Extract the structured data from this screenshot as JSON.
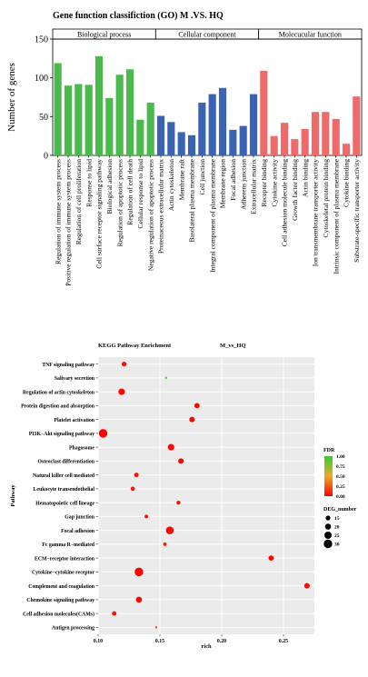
{
  "chart_data": [
    {
      "type": "bar",
      "title": "Gene function classifiction (GO) M .VS. HQ",
      "ylabel": "Number of genes",
      "ylim": [
        0,
        150
      ],
      "yticks": [
        0,
        50,
        100,
        150
      ],
      "groups": [
        {
          "name": "Biological process",
          "color": "#4cb94c",
          "categories": [
            "Regulation of immune system process",
            "Positive regulation of immune system process",
            "Regulation of cell proliferation",
            "Response to lipid",
            "Cell surface receptor signaling pathway",
            "Biological adhesion",
            "Regulation of apoptotic process",
            "Regulation of cell death",
            "Cellular response to lipid",
            "Negative regulation of apoptotic process"
          ],
          "values": [
            119,
            90,
            92,
            91,
            128,
            74,
            104,
            111,
            46,
            68
          ]
        },
        {
          "name": "Cellular component",
          "color": "#3b63b3",
          "categories": [
            "Proteinaceous extracellular matrix",
            "Actin cytoskeleton",
            "Membrane raft",
            "Basolateral plasma membrane",
            "Cell junction",
            "Integral component of plasma membrane",
            "Membrane region",
            "Focal adhesion",
            "Adherens junction",
            "Extracellular matrix"
          ],
          "values": [
            51,
            43,
            30,
            26,
            68,
            79,
            87,
            33,
            38,
            79
          ]
        },
        {
          "name": "Molecucular function",
          "color": "#ee6b6b",
          "categories": [
            "Receptor binding",
            "Cytokine activity",
            "Cell adhesion molecule binding",
            "Growth factor binding",
            "Actin binding",
            "Ion transmembrane transporter activity",
            "Cytoskeletal protein binding",
            "Intrinsic component of plasma membrane",
            "Cytokine binding",
            "Substrate-specific transporter activity"
          ],
          "values": [
            109,
            25,
            42,
            21,
            34,
            56,
            56,
            47,
            15,
            76
          ]
        }
      ]
    },
    {
      "type": "scatter",
      "title": "KEGG Pathway Enrichment",
      "subtitle": "M_vs_HQ",
      "xlabel": "rich",
      "ylabel": "Pathway",
      "xlim": [
        0.1,
        0.275
      ],
      "xticks": [
        0.1,
        0.15,
        0.2,
        0.25
      ],
      "xtick_labels": [
        "0.10",
        "0.15",
        "0.20",
        "0.25"
      ],
      "categories": [
        "TNF signaling pathway",
        "Salivary secretion",
        "Regulation of actin cytoskeleton",
        "Protein digestion and absorption",
        "Platelet activation",
        "PI3K−Akt signaling pathway",
        "Phagosome",
        "Osteoclast differentiation",
        "Natural killer cell mediated",
        "Leukocyte transendothelial",
        "Hematopoietic cell lineage",
        "Gap junction",
        "Focal adhesion",
        "Fc gamma R−mediated",
        "ECM−receptor interaction",
        "Cytokine−cytokine receptor",
        "Complement and coagulation",
        "Chemokine signaling pathway",
        "Cell adhesion molecules(CAMs)",
        "Antigen processing"
      ],
      "points": [
        {
          "pathway": "TNF signaling pathway",
          "rich": 0.121,
          "fdr": 0.05,
          "count": 15
        },
        {
          "pathway": "Salivary secretion",
          "rich": 0.155,
          "fdr": 0.95,
          "count": 5
        },
        {
          "pathway": "Regulation of actin cytoskeleton",
          "rich": 0.119,
          "fdr": 0.02,
          "count": 22
        },
        {
          "pathway": "Protein digestion and absorption",
          "rich": 0.18,
          "fdr": 0.02,
          "count": 17
        },
        {
          "pathway": "Platelet activation",
          "rich": 0.176,
          "fdr": 0.02,
          "count": 18
        },
        {
          "pathway": "PI3K−Akt signaling pathway",
          "rich": 0.104,
          "fdr": 0.01,
          "count": 30
        },
        {
          "pathway": "Phagosome",
          "rich": 0.159,
          "fdr": 0.02,
          "count": 22
        },
        {
          "pathway": "Osteoclast differentiation",
          "rich": 0.167,
          "fdr": 0.02,
          "count": 18
        },
        {
          "pathway": "Natural killer cell mediated",
          "rich": 0.131,
          "fdr": 0.05,
          "count": 14
        },
        {
          "pathway": "Leukocyte transendothelial",
          "rich": 0.128,
          "fdr": 0.05,
          "count": 13
        },
        {
          "pathway": "Hematopoietic cell lineage",
          "rich": 0.165,
          "fdr": 0.05,
          "count": 12
        },
        {
          "pathway": "Gap junction",
          "rich": 0.139,
          "fdr": 0.05,
          "count": 11
        },
        {
          "pathway": "Focal adhesion",
          "rich": 0.158,
          "fdr": 0.01,
          "count": 27
        },
        {
          "pathway": "Fc gamma R−mediated",
          "rich": 0.154,
          "fdr": 0.05,
          "count": 10
        },
        {
          "pathway": "ECM−receptor interaction",
          "rich": 0.24,
          "fdr": 0.02,
          "count": 17
        },
        {
          "pathway": "Cytokine−cytokine receptor",
          "rich": 0.133,
          "fdr": 0.01,
          "count": 30
        },
        {
          "pathway": "Complement and coagulation",
          "rich": 0.269,
          "fdr": 0.02,
          "count": 18
        },
        {
          "pathway": "Chemokine signaling pathway",
          "rich": 0.133,
          "fdr": 0.02,
          "count": 20
        },
        {
          "pathway": "Cell adhesion molecules(CAMs)",
          "rich": 0.113,
          "fdr": 0.05,
          "count": 14
        },
        {
          "pathway": "Antigen processing",
          "rich": 0.147,
          "fdr": 0.2,
          "count": 5
        }
      ],
      "colorbar": {
        "title": "FDR",
        "ticks": [
          "1.00",
          "0.75",
          "0.50",
          "0.25",
          "0.00"
        ],
        "color_low": "#ff0000",
        "color_high": "#33cc33"
      },
      "size_legend": {
        "title": "DEG_number",
        "values": [
          15,
          20,
          25,
          30
        ]
      },
      "grid": true,
      "panel_background": "#ebebeb"
    }
  ]
}
